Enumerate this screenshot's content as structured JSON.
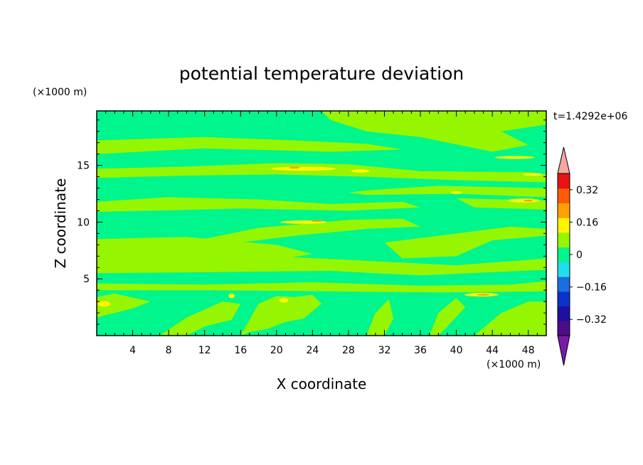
{
  "chart_data": {
    "type": "heatmap",
    "title": "potential temperature deviation",
    "time_label": "t=1.4292e+06",
    "xlabel": "X coordinate",
    "ylabel": "Z coordinate",
    "x_unit": "(×1000 m)",
    "y_unit": "(×1000 m)",
    "xlim": [
      0,
      50
    ],
    "ylim": [
      0,
      19.8
    ],
    "x_ticks": [
      4,
      8,
      12,
      16,
      20,
      24,
      28,
      32,
      36,
      40,
      44,
      48
    ],
    "y_ticks": [
      5,
      10,
      15
    ],
    "colorbar": {
      "levels": [
        -0.4,
        -0.32,
        -0.24,
        -0.16,
        -0.08,
        0,
        0.08,
        0.16,
        0.24,
        0.32,
        0.4
      ],
      "tick_labels": [
        "0.32",
        "0.16",
        "0",
        "−0.16",
        "−0.32"
      ],
      "tick_values": [
        0.32,
        0.16,
        0,
        -0.16,
        -0.32
      ],
      "colors": [
        "#4b0d8a",
        "#1f0fa0",
        "#0a32c8",
        "#1a6ee0",
        "#22ddee",
        "#00f58c",
        "#96f500",
        "#fff500",
        "#ffa000",
        "#ff5a0a",
        "#e61414"
      ],
      "under_color": "#7a1aa8",
      "over_color": "#f5a6a0",
      "ordered": "bottom-to-top"
    },
    "field_description_colors": {
      "background_bin": "#00f58c",
      "positive_bin": "#96f500",
      "warm_bin": "#fff500",
      "hot_bin": "#ffa000"
    },
    "positive_regions": [
      {
        "x": [
          0,
          12,
          22,
          30,
          34,
          26,
          12,
          0
        ],
        "z": [
          17.2,
          17.5,
          17.2,
          16.9,
          16.4,
          16.2,
          16.5,
          16.0
        ]
      },
      {
        "x": [
          0,
          10,
          20,
          28,
          36,
          48,
          50,
          50,
          40,
          30,
          20,
          10,
          0
        ],
        "z": [
          14.7,
          14.9,
          15.2,
          15.1,
          14.5,
          14.4,
          14.2,
          13.5,
          13.7,
          14.0,
          14.2,
          14.1,
          13.9
        ]
      },
      {
        "x": [
          25,
          40,
          50,
          50,
          45,
          48,
          44,
          36,
          30,
          26
        ],
        "z": [
          19.8,
          19.8,
          19.8,
          18.6,
          18.0,
          16.8,
          16.2,
          17.5,
          18.0,
          19.0
        ]
      },
      {
        "x": [
          30,
          38,
          50,
          50,
          40,
          30,
          28
        ],
        "z": [
          12.8,
          13.2,
          13.0,
          12.2,
          12.5,
          12.4,
          12.6
        ]
      },
      {
        "x": [
          0,
          8,
          18,
          26,
          34,
          36,
          28,
          16,
          6,
          0
        ],
        "z": [
          11.8,
          12.2,
          12.0,
          11.6,
          11.8,
          11.3,
          11.0,
          11.2,
          11.0,
          10.9
        ]
      },
      {
        "x": [
          40,
          50,
          50,
          42
        ],
        "z": [
          12.1,
          11.9,
          11.1,
          11.3
        ]
      },
      {
        "x": [
          10,
          18,
          28,
          34,
          36,
          30,
          22,
          14,
          10
        ],
        "z": [
          8.2,
          9.5,
          10.2,
          10.3,
          9.6,
          9.4,
          8.8,
          8.0,
          7.5
        ]
      },
      {
        "x": [
          0,
          10,
          20,
          24,
          18,
          8,
          0
        ],
        "z": [
          8.5,
          8.7,
          8.0,
          7.2,
          6.4,
          6.7,
          6.6
        ]
      },
      {
        "x": [
          32,
          40,
          46,
          50,
          50,
          44,
          40,
          34
        ],
        "z": [
          8.2,
          9.0,
          9.6,
          9.4,
          8.8,
          8.4,
          7.0,
          6.8
        ]
      },
      {
        "x": [
          0,
          14,
          30,
          40,
          50,
          50,
          36,
          26,
          14,
          0
        ],
        "z": [
          6.7,
          7.2,
          6.6,
          6.2,
          6.8,
          5.8,
          5.3,
          5.7,
          5.6,
          5.5
        ]
      },
      {
        "x": [
          0,
          12,
          24,
          36,
          46,
          50,
          50,
          38,
          26,
          12,
          0
        ],
        "z": [
          4.6,
          4.5,
          4.7,
          4.4,
          4.5,
          4.8,
          3.9,
          3.8,
          3.9,
          4.0,
          4.0
        ]
      },
      {
        "x": [
          0,
          2,
          6,
          4,
          2,
          0
        ],
        "z": [
          3.4,
          3.7,
          3.0,
          2.4,
          2.0,
          1.6
        ]
      },
      {
        "x": [
          7,
          10,
          14,
          16,
          15,
          12,
          10
        ],
        "z": [
          0,
          1.6,
          3.0,
          2.8,
          1.4,
          0.8,
          0
        ]
      },
      {
        "x": [
          16,
          18,
          20,
          22,
          24,
          25,
          23,
          21,
          19,
          17,
          16
        ],
        "z": [
          0,
          2.8,
          3.5,
          3.4,
          3.6,
          2.8,
          1.5,
          1.2,
          0.6,
          0.3,
          0
        ]
      },
      {
        "x": [
          30,
          31,
          32.5,
          33,
          32
        ],
        "z": [
          0,
          2.0,
          3.2,
          1.5,
          0
        ]
      },
      {
        "x": [
          37,
          38,
          40,
          41,
          39,
          38
        ],
        "z": [
          0,
          2.0,
          3.3,
          2.5,
          0.8,
          0
        ]
      },
      {
        "x": [
          42,
          45,
          48,
          50,
          50,
          44
        ],
        "z": [
          0,
          2.0,
          3.0,
          3.0,
          0,
          0
        ]
      }
    ],
    "warm_cores": [
      {
        "x": 23,
        "z": 14.7,
        "rx": 3.6,
        "rz": 0.18
      },
      {
        "x": 29.3,
        "z": 14.5,
        "rx": 1.0,
        "rz": 0.15
      },
      {
        "x": 46.5,
        "z": 15.7,
        "rx": 2.2,
        "rz": 0.13
      },
      {
        "x": 48.5,
        "z": 14.2,
        "rx": 1.1,
        "rz": 0.13
      },
      {
        "x": 47.5,
        "z": 11.9,
        "rx": 1.8,
        "rz": 0.18
      },
      {
        "x": 40,
        "z": 12.6,
        "rx": 0.6,
        "rz": 0.12
      },
      {
        "x": 23,
        "z": 10.0,
        "rx": 2.6,
        "rz": 0.15
      },
      {
        "x": 42.8,
        "z": 3.6,
        "rx": 1.9,
        "rz": 0.16
      },
      {
        "x": 0.8,
        "z": 2.8,
        "rx": 0.7,
        "rz": 0.25
      },
      {
        "x": 20.8,
        "z": 3.1,
        "rx": 0.5,
        "rz": 0.2
      },
      {
        "x": 15,
        "z": 3.5,
        "rx": 0.35,
        "rz": 0.2
      }
    ],
    "hot_cores": [
      {
        "x": 22.0,
        "z": 14.8,
        "rx": 0.6,
        "rz": 0.08
      },
      {
        "x": 24.5,
        "z": 10.1,
        "rx": 0.6,
        "rz": 0.07
      },
      {
        "x": 43.0,
        "z": 3.6,
        "rx": 0.7,
        "rz": 0.07
      },
      {
        "x": 48.0,
        "z": 11.9,
        "rx": 0.5,
        "rz": 0.08
      }
    ],
    "grid": false,
    "legend": "colorbar-right"
  }
}
